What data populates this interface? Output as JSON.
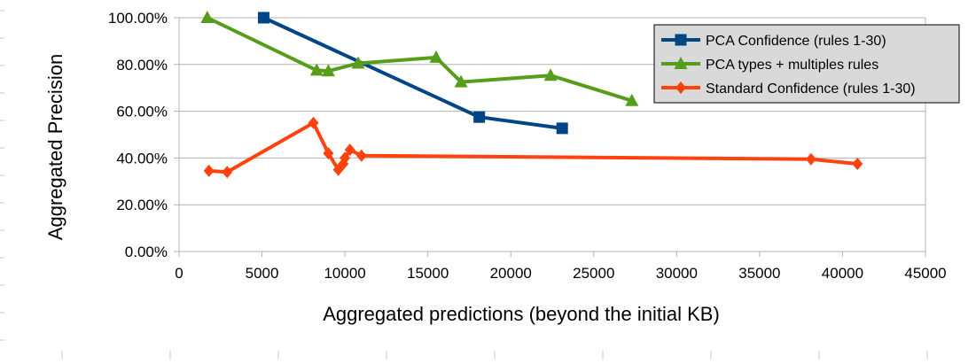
{
  "chart_data": {
    "type": "line",
    "title": "",
    "xlabel": "Aggregated predictions (beyond the initial KB)",
    "ylabel": "Aggregated Precision",
    "xlim": [
      0,
      45000
    ],
    "ylim": [
      0,
      1
    ],
    "x_ticks": [
      0,
      5000,
      10000,
      15000,
      20000,
      25000,
      30000,
      35000,
      40000,
      45000
    ],
    "x_tick_labels": [
      "0",
      "5000",
      "10000",
      "15000",
      "20000",
      "25000",
      "30000",
      "35000",
      "40000",
      "45000"
    ],
    "y_ticks": [
      0,
      0.2,
      0.4,
      0.6,
      0.8,
      1.0
    ],
    "y_tick_labels": [
      "0.00%",
      "20.00%",
      "40.00%",
      "60.00%",
      "80.00%",
      "100.00%"
    ],
    "grid": "horizontal",
    "legend_position": "top-right",
    "series": [
      {
        "name": "PCA Confidence (rules 1-30)",
        "color": "#004586",
        "marker": "square",
        "points": [
          {
            "x": 5100,
            "y": 1.0
          },
          {
            "x": 18100,
            "y": 0.575
          },
          {
            "x": 23100,
            "y": 0.527
          }
        ]
      },
      {
        "name": "PCA types + multiples rules",
        "color": "#579d1c",
        "marker": "triangle",
        "points": [
          {
            "x": 1700,
            "y": 1.0
          },
          {
            "x": 8300,
            "y": 0.775
          },
          {
            "x": 9000,
            "y": 0.772
          },
          {
            "x": 10800,
            "y": 0.805
          },
          {
            "x": 15500,
            "y": 0.83
          },
          {
            "x": 17000,
            "y": 0.725
          },
          {
            "x": 22400,
            "y": 0.753
          },
          {
            "x": 27300,
            "y": 0.645
          }
        ]
      },
      {
        "name": "Standard Confidence (rules 1-30)",
        "color": "#ff420e",
        "marker": "diamond",
        "points": [
          {
            "x": 1800,
            "y": 0.345
          },
          {
            "x": 2900,
            "y": 0.34
          },
          {
            "x": 8100,
            "y": 0.55
          },
          {
            "x": 9000,
            "y": 0.42
          },
          {
            "x": 9600,
            "y": 0.35
          },
          {
            "x": 9900,
            "y": 0.375
          },
          {
            "x": 10000,
            "y": 0.4
          },
          {
            "x": 10300,
            "y": 0.435
          },
          {
            "x": 11000,
            "y": 0.41
          },
          {
            "x": 38100,
            "y": 0.395
          },
          {
            "x": 40900,
            "y": 0.375
          }
        ]
      }
    ]
  }
}
